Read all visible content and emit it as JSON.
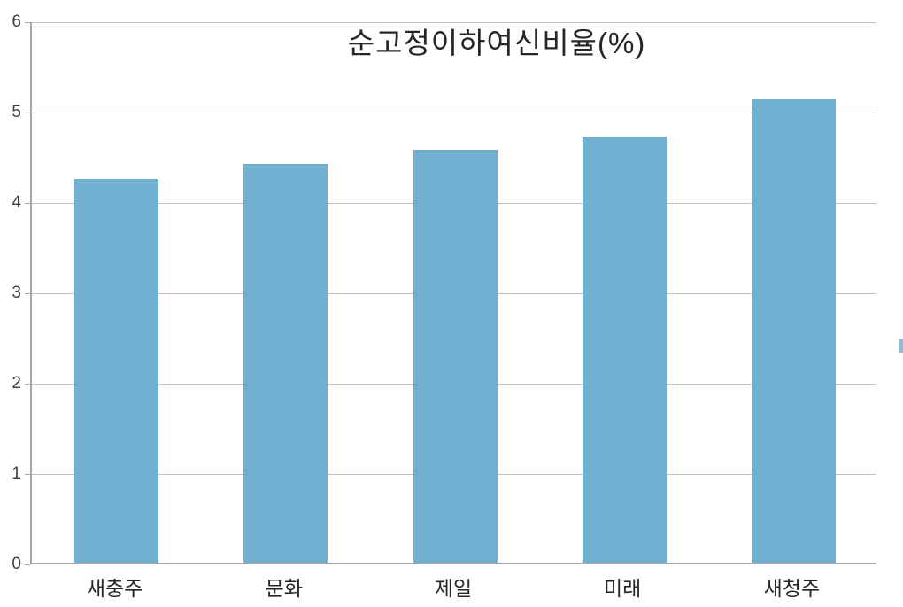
{
  "chart_data": {
    "type": "bar",
    "title": "순고정이하여신비율(%)",
    "categories": [
      "새충주",
      "문화",
      "제일",
      "미래",
      "새청주"
    ],
    "values": [
      4.25,
      4.41,
      4.57,
      4.71,
      5.13
    ],
    "xlabel": "",
    "ylabel": "",
    "ylim": [
      0,
      6
    ],
    "yticks": [
      0,
      1,
      2,
      3,
      4,
      5,
      6
    ],
    "grid": "horizontal",
    "legend_position": "clipped-right-edge",
    "bar_color": "#71afd0",
    "gridline_color": "#c3c3c3",
    "axis_color": "#a6a6a6",
    "text_color": "#262626"
  }
}
